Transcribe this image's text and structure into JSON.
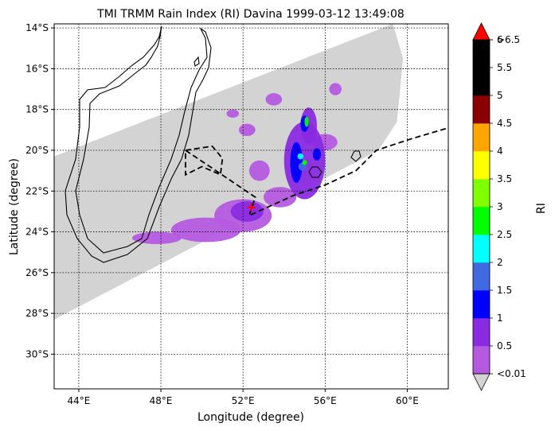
{
  "chart_data": {
    "type": "map-heatmap",
    "title": "TMI TRMM Rain Index (RI) Davina 1999-03-12 13:49:08",
    "xlabel": "Longitude (degree)",
    "ylabel": "Latitude (degree)",
    "colorbar_label": "RI",
    "xlim": [
      42.8,
      62.0
    ],
    "ylim": [
      -31.7,
      -13.8
    ],
    "xticks": [
      {
        "value": 44,
        "label": "44°E"
      },
      {
        "value": 48,
        "label": "48°E"
      },
      {
        "value": 52,
        "label": "52°E"
      },
      {
        "value": 56,
        "label": "56°E"
      },
      {
        "value": 60,
        "label": "60°E"
      }
    ],
    "yticks": [
      {
        "value": -14,
        "label": "14°S"
      },
      {
        "value": -16,
        "label": "16°S"
      },
      {
        "value": -18,
        "label": "18°S"
      },
      {
        "value": -20,
        "label": "20°S"
      },
      {
        "value": -22,
        "label": "22°S"
      },
      {
        "value": -24,
        "label": "24°S"
      },
      {
        "value": -26,
        "label": "26°S"
      },
      {
        "value": -28,
        "label": "28°S"
      },
      {
        "value": -30,
        "label": "30°S"
      }
    ],
    "grid": true,
    "colorbar": {
      "levels": [
        {
          "label": "<0.01",
          "color": "#c0c0c0"
        },
        {
          "label": "0.5",
          "color": "#b55ae0"
        },
        {
          "label": "1",
          "color": "#8a2be2"
        },
        {
          "label": "1.5",
          "color": "#0000ff"
        },
        {
          "label": "2",
          "color": "#4169e1"
        },
        {
          "label": "2.5",
          "color": "#00ffff"
        },
        {
          "label": "3",
          "color": "#00ff00"
        },
        {
          "label": "3.5",
          "color": "#7fff00"
        },
        {
          "label": "4",
          "color": "#ffff00"
        },
        {
          "label": "4.5",
          "color": "#ffa500"
        },
        {
          "label": "5",
          "color": "#8b0000"
        },
        {
          "label": "5.5",
          "color": "#000000"
        },
        {
          "label": "6",
          "color": "#000000"
        },
        {
          "label": ">6.5",
          "color": "#ff0000"
        }
      ],
      "bins": [
        {
          "color": "#b55ae0"
        },
        {
          "color": "#8a2be2"
        },
        {
          "color": "#0000ff"
        },
        {
          "color": "#4169e1"
        },
        {
          "color": "#00ffff"
        },
        {
          "color": "#00ff00"
        },
        {
          "color": "#7fff00"
        },
        {
          "color": "#ffff00"
        },
        {
          "color": "#ffa500"
        },
        {
          "color": "#8b0000"
        },
        {
          "color": "#000000"
        },
        {
          "color": "#000000"
        }
      ],
      "under_color": "#d3d3d3",
      "over_color": "#ff0000"
    },
    "swath_color": "#d3d3d3",
    "swath": [
      [
        42.8,
        -20.3
      ],
      [
        59.3,
        -13.8
      ],
      [
        59.8,
        -15.5
      ],
      [
        59.5,
        -18.6
      ],
      [
        58.6,
        -20.0
      ],
      [
        42.8,
        -28.3
      ]
    ],
    "storm_center": {
      "lon": 52.4,
      "lat": -22.8,
      "color": "#ff0000"
    },
    "track": [
      [
        49.2,
        -20.0
      ],
      [
        50.5,
        -19.8
      ],
      [
        51.0,
        -20.4
      ],
      [
        50.9,
        -21.2
      ],
      [
        50.0,
        -20.8
      ],
      [
        49.2,
        -21.2
      ],
      [
        49.2,
        -20.0
      ],
      [
        52.6,
        -22.3
      ],
      [
        52.3,
        -23.2
      ],
      [
        54.5,
        -22.2
      ],
      [
        56.0,
        -21.7
      ],
      [
        57.5,
        -21.0
      ],
      [
        58.5,
        -20.0
      ],
      [
        60.0,
        -19.5
      ],
      [
        62.0,
        -18.9
      ]
    ],
    "rain_cells": [
      {
        "lon": 52.0,
        "lat": -23.2,
        "rx": 1.4,
        "ry": 0.8,
        "value": 0.5
      },
      {
        "lon": 50.2,
        "lat": -23.9,
        "rx": 1.7,
        "ry": 0.6,
        "value": 0.5
      },
      {
        "lon": 47.8,
        "lat": -24.3,
        "rx": 1.2,
        "ry": 0.3,
        "value": 0.5
      },
      {
        "lon": 53.8,
        "lat": -22.3,
        "rx": 0.8,
        "ry": 0.5,
        "value": 0.5
      },
      {
        "lon": 52.8,
        "lat": -21.0,
        "rx": 0.5,
        "ry": 0.5,
        "value": 0.5
      },
      {
        "lon": 51.5,
        "lat": -18.2,
        "rx": 0.3,
        "ry": 0.2,
        "value": 0.5
      },
      {
        "lon": 53.5,
        "lat": -17.5,
        "rx": 0.4,
        "ry": 0.3,
        "value": 0.5
      },
      {
        "lon": 52.2,
        "lat": -19.0,
        "rx": 0.4,
        "ry": 0.3,
        "value": 0.5
      },
      {
        "lon": 56.0,
        "lat": -19.6,
        "rx": 0.6,
        "ry": 0.4,
        "value": 0.5
      },
      {
        "lon": 56.5,
        "lat": -17.0,
        "rx": 0.3,
        "ry": 0.3,
        "value": 0.5
      },
      {
        "lon": 55.0,
        "lat": -20.5,
        "rx": 1.0,
        "ry": 1.9,
        "value": 1.0
      },
      {
        "lon": 55.2,
        "lat": -18.8,
        "rx": 0.4,
        "ry": 0.9,
        "value": 1.0
      },
      {
        "lon": 52.2,
        "lat": -23.0,
        "rx": 0.8,
        "ry": 0.5,
        "value": 1.0
      },
      {
        "lon": 54.6,
        "lat": -20.6,
        "rx": 0.3,
        "ry": 1.0,
        "value": 1.5
      },
      {
        "lon": 55.6,
        "lat": -20.2,
        "rx": 0.2,
        "ry": 0.3,
        "value": 1.5
      },
      {
        "lon": 55.0,
        "lat": -18.7,
        "rx": 0.2,
        "ry": 0.4,
        "value": 1.5
      },
      {
        "lon": 54.9,
        "lat": -20.8,
        "rx": 0.2,
        "ry": 0.2,
        "value": 2.0
      },
      {
        "lon": 54.8,
        "lat": -20.3,
        "rx": 0.15,
        "ry": 0.15,
        "value": 2.5
      },
      {
        "lon": 55.1,
        "lat": -18.6,
        "rx": 0.1,
        "ry": 0.25,
        "value": 3.0
      },
      {
        "lon": 55.0,
        "lat": -20.6,
        "rx": 0.12,
        "ry": 0.12,
        "value": 3.0
      }
    ]
  }
}
